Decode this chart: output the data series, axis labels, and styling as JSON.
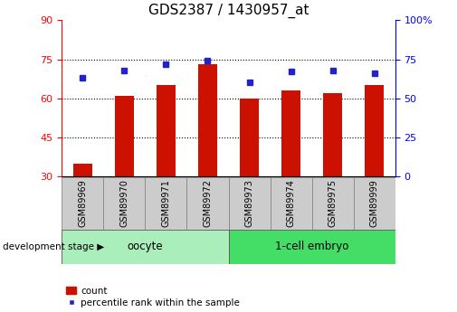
{
  "title": "GDS2387 / 1430957_at",
  "samples": [
    "GSM89969",
    "GSM89970",
    "GSM89971",
    "GSM89972",
    "GSM89973",
    "GSM89974",
    "GSM89975",
    "GSM89999"
  ],
  "counts": [
    35,
    61,
    65,
    73,
    60,
    63,
    62,
    65
  ],
  "percentiles": [
    63,
    68,
    72,
    74,
    60,
    67,
    68,
    66
  ],
  "left_ylim": [
    30,
    90
  ],
  "right_ylim": [
    0,
    100
  ],
  "left_yticks": [
    30,
    45,
    60,
    75,
    90
  ],
  "right_yticks": [
    0,
    25,
    50,
    75,
    100
  ],
  "right_yticklabels": [
    "0",
    "25",
    "50",
    "75",
    "100%"
  ],
  "bar_color": "#cc1100",
  "dot_color": "#2222cc",
  "bar_width": 0.45,
  "groups": [
    {
      "label": "oocyte",
      "indices": [
        0,
        1,
        2,
        3
      ],
      "color": "#aaeebb"
    },
    {
      "label": "1-cell embryo",
      "indices": [
        4,
        5,
        6,
        7
      ],
      "color": "#44dd66"
    }
  ],
  "group_label": "development stage",
  "legend_count_label": "count",
  "legend_percentile_label": "percentile rank within the sample",
  "tick_fontsize": 8,
  "title_fontsize": 11
}
